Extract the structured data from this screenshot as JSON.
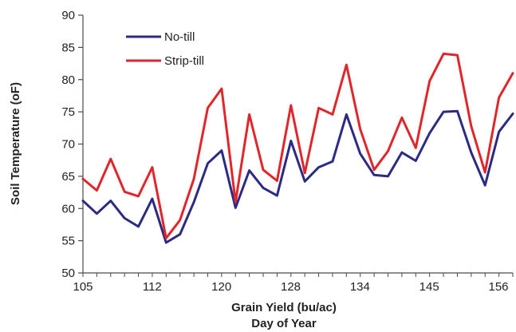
{
  "chart_data": {
    "type": "line",
    "title": "",
    "xlabel": "Grain Yield (bu/ac)",
    "xlabel2": "Day of Year",
    "ylabel": "Soil Temperature (oF)",
    "ylim": [
      50,
      90
    ],
    "yticks": [
      50,
      55,
      60,
      65,
      70,
      75,
      80,
      85,
      90
    ],
    "xticks": [
      "105",
      "112",
      "120",
      "128",
      "134",
      "145",
      "156"
    ],
    "grid": false,
    "legend": "top-left",
    "colors": {
      "No-till": "#2b2b86",
      "Strip-till": "#e0262b"
    },
    "series": [
      {
        "name": "No-till",
        "values": [
          61.2,
          59.2,
          61.2,
          58.5,
          57.2,
          61.5,
          54.7,
          56.0,
          61.0,
          67.0,
          69.0,
          60.1,
          65.9,
          63.2,
          62.0,
          70.5,
          64.2,
          66.4,
          67.3,
          74.6,
          68.5,
          65.2,
          65.0,
          68.7,
          67.4,
          71.7,
          75.0,
          75.1,
          68.7,
          63.6,
          71.9,
          74.7
        ]
      },
      {
        "name": "Strip-till",
        "values": [
          64.6,
          62.8,
          67.7,
          62.6,
          61.9,
          66.4,
          55.4,
          58.2,
          64.6,
          75.6,
          78.6,
          61.0,
          74.6,
          66.0,
          64.3,
          76.0,
          65.5,
          75.6,
          74.6,
          82.3,
          72.3,
          66.0,
          68.9,
          74.1,
          69.4,
          79.8,
          84.0,
          83.8,
          72.8,
          65.6,
          77.2,
          81.0
        ]
      }
    ]
  }
}
